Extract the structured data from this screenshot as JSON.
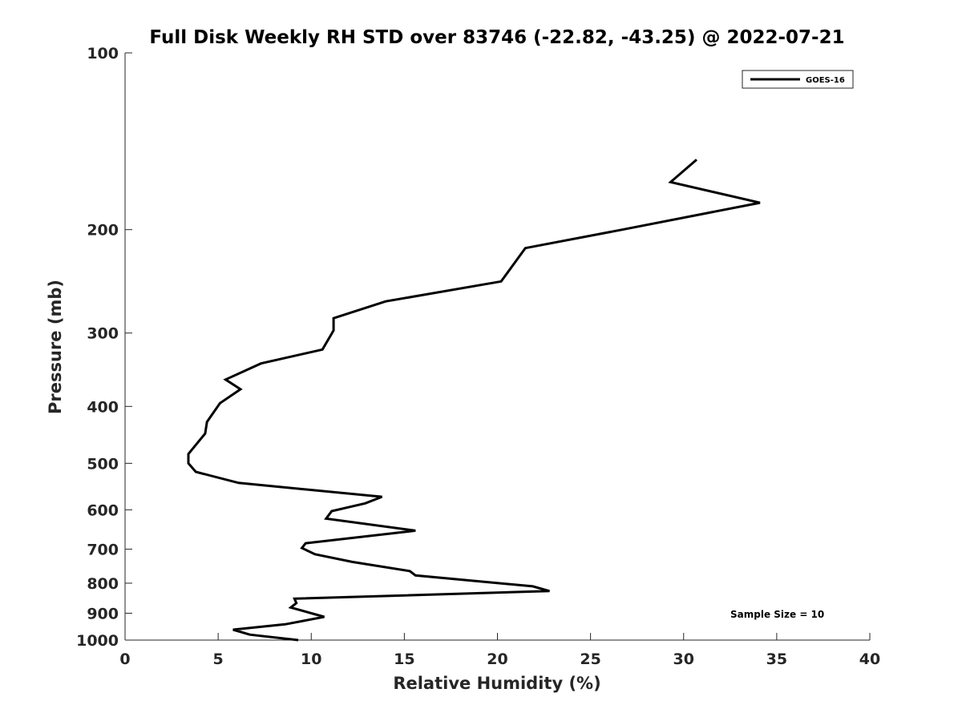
{
  "chart_data": {
    "type": "line",
    "title": "Full Disk Weekly RH STD over 83746 (-22.82, -43.25) @ 2022-07-21",
    "xlabel": "Relative Humidity (%)",
    "ylabel": "Pressure (mb)",
    "xlim": [
      0,
      40
    ],
    "ylim": [
      100,
      1000
    ],
    "y_scale": "log",
    "y_reversed": true,
    "x_ticks": [
      "0",
      "5",
      "10",
      "15",
      "20",
      "25",
      "30",
      "35",
      "40"
    ],
    "x_tick_values": [
      0,
      5,
      10,
      15,
      20,
      25,
      30,
      35,
      40
    ],
    "y_ticks": [
      "100",
      "200",
      "300",
      "400",
      "500",
      "600",
      "700",
      "800",
      "900",
      "1000"
    ],
    "y_tick_values": [
      100,
      200,
      300,
      400,
      500,
      600,
      700,
      800,
      900,
      1000
    ],
    "grid": false,
    "legend_position": "top-right",
    "annotation": "Sample Size = 10",
    "series": [
      {
        "name": "GOES-16",
        "color": "#000000",
        "x": [
          30.7,
          29.3,
          34.1,
          26.7,
          21.5,
          20.2,
          14.0,
          11.2,
          11.2,
          10.6,
          7.3,
          5.4,
          6.2,
          5.1,
          4.4,
          4.3,
          3.4,
          3.4,
          3.8,
          6.1,
          13.8,
          12.9,
          11.1,
          10.8,
          15.6,
          9.7,
          9.5,
          10.2,
          12.2,
          15.3,
          15.6,
          21.9,
          22.8,
          9.1,
          9.2,
          8.9,
          10.7,
          8.6,
          5.8,
          6.7,
          9.3
        ],
        "y": [
          152,
          166,
          180,
          200,
          215,
          245,
          265,
          283,
          297,
          320,
          338,
          360,
          374,
          395,
          425,
          445,
          482,
          500,
          517,
          540,
          570,
          585,
          603,
          621,
          651,
          684,
          697,
          714,
          736,
          763,
          776,
          810,
          825,
          850,
          865,
          880,
          913,
          940,
          960,
          979,
          1000
        ]
      }
    ]
  }
}
